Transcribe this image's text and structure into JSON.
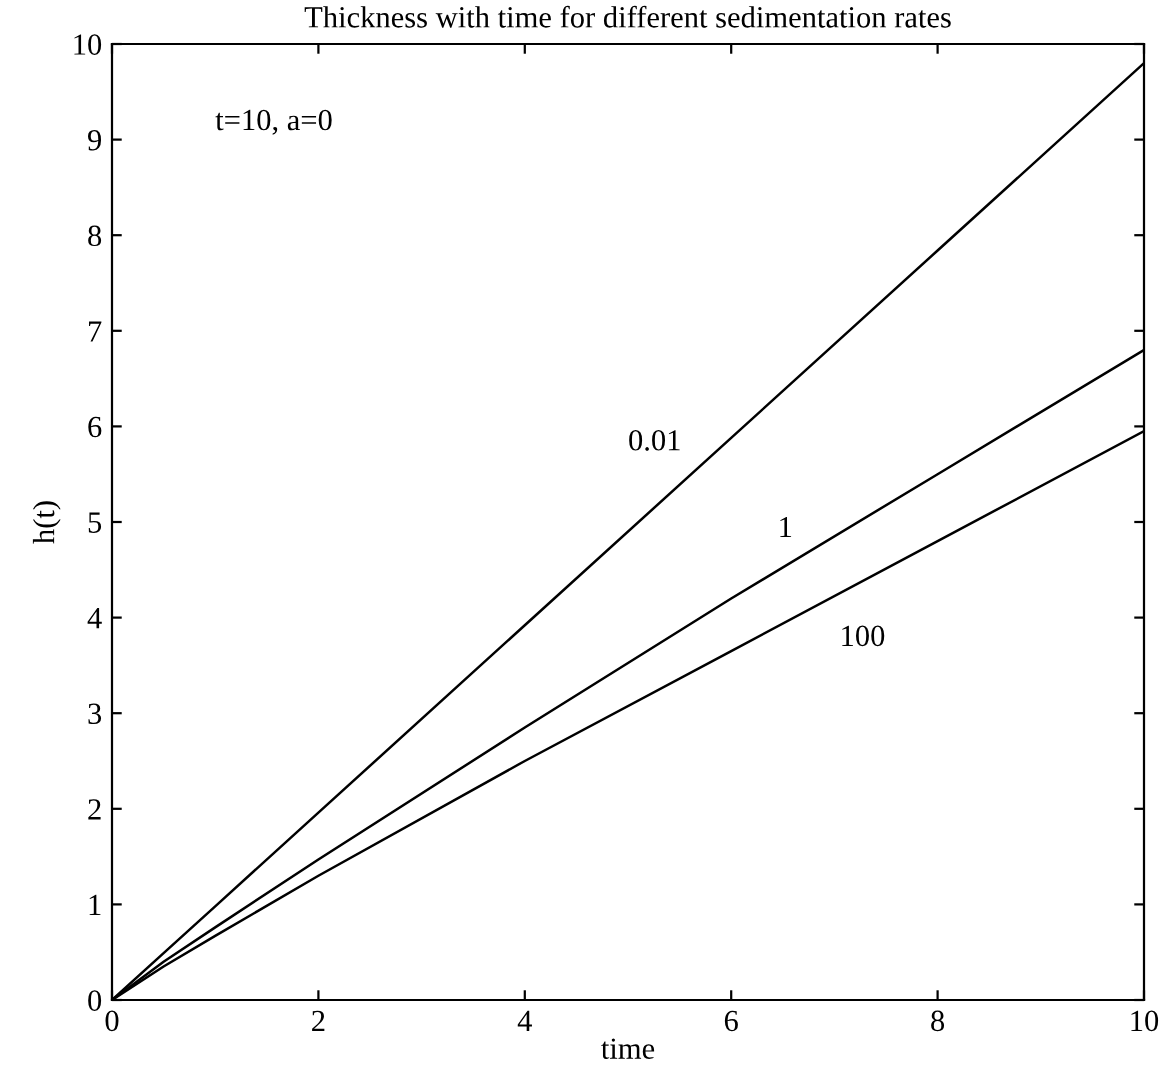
{
  "chart_data": {
    "type": "line",
    "title": "Thickness with time for different sedimentation rates",
    "xlabel": "time",
    "ylabel": "h(t)",
    "x": [
      0,
      0.5,
      1,
      2,
      4,
      6,
      8,
      10
    ],
    "series": [
      {
        "name": "0.01",
        "color": "#000000",
        "values": [
          0,
          0.49,
          0.98,
          1.96,
          3.92,
          5.88,
          7.84,
          9.8
        ]
      },
      {
        "name": "1",
        "color": "#000000",
        "values": [
          0,
          0.4,
          0.76,
          1.47,
          2.85,
          4.2,
          5.5,
          6.8
        ]
      },
      {
        "name": "100",
        "color": "#000000",
        "values": [
          0,
          0.35,
          0.67,
          1.3,
          2.5,
          3.65,
          4.8,
          5.95
        ]
      }
    ],
    "annotations": [
      "t=10, a=0"
    ],
    "xlim": [
      0,
      10
    ],
    "ylim": [
      0,
      10
    ],
    "xticks": [
      0,
      2,
      4,
      6,
      8,
      10
    ],
    "yticks": [
      0,
      1,
      2,
      3,
      4,
      5,
      6,
      7,
      8,
      9,
      10
    ],
    "grid": false,
    "legend": false,
    "marker": "none",
    "line_style": "solid"
  }
}
